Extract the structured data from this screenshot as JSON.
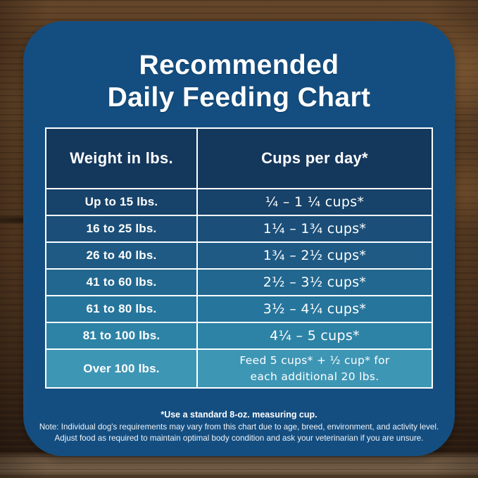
{
  "title": {
    "line1": "Recommended",
    "line2": "Daily Feeding Chart"
  },
  "chart_data": {
    "type": "table",
    "title": "Recommended Daily Feeding Chart",
    "columns": [
      "Weight in lbs.",
      "Cups per day*"
    ],
    "rows": [
      [
        "Up to 15 lbs.",
        "¼ – 1 ¼ cups*"
      ],
      [
        "16 to 25 lbs.",
        "1¼ – 1¾ cups*"
      ],
      [
        "26 to 40 lbs.",
        "1¾ – 2½ cups*"
      ],
      [
        "41 to 60 lbs.",
        "2½ – 3½ cups*"
      ],
      [
        "61 to 80 lbs.",
        "3½ – 4¼ cups*"
      ],
      [
        "81 to 100 lbs.",
        "4¼ – 5 cups*"
      ],
      [
        "Over 100 lbs.",
        "Feed 5 cups* + ½ cup* for each additional 20 lbs."
      ]
    ],
    "last_row_lines": [
      "Feed 5 cups* + ½ cup* for",
      "each additional 20 lbs."
    ],
    "numeric_feeding_guide": [
      {
        "weight_lbs_min": 0,
        "weight_lbs_max": 15,
        "cups_min": 0.25,
        "cups_max": 1.25
      },
      {
        "weight_lbs_min": 16,
        "weight_lbs_max": 25,
        "cups_min": 1.25,
        "cups_max": 1.75
      },
      {
        "weight_lbs_min": 26,
        "weight_lbs_max": 40,
        "cups_min": 1.75,
        "cups_max": 2.5
      },
      {
        "weight_lbs_min": 41,
        "weight_lbs_max": 60,
        "cups_min": 2.5,
        "cups_max": 3.5
      },
      {
        "weight_lbs_min": 61,
        "weight_lbs_max": 80,
        "cups_min": 3.5,
        "cups_max": 4.25
      },
      {
        "weight_lbs_min": 81,
        "weight_lbs_max": 100,
        "cups_min": 4.25,
        "cups_max": 5
      },
      {
        "weight_lbs_min": 100,
        "weight_lbs_max": null,
        "rule": "Feed 5 cups plus 0.5 cup for each additional 20 lbs."
      }
    ]
  },
  "footnotes": {
    "line1": "*Use a standard 8-oz. measuring cup.",
    "line2": "Note: Individual dog's requirements may vary from this chart due to age, breed, environment, and activity level.",
    "line3": "Adjust food as required to maintain optimal body condition and ask your veterinarian if you are unsure."
  },
  "style": {
    "card_color": "#144e80",
    "header_color": "#14375c",
    "row_colors": [
      "#174269",
      "#1b4f79",
      "#1e5a84",
      "#21678f",
      "#26759c",
      "#2d83a6",
      "#3e96b5"
    ],
    "border_color": "#ffffff",
    "text_color": "#ffffff",
    "wood_base_color": "#5d4026"
  }
}
